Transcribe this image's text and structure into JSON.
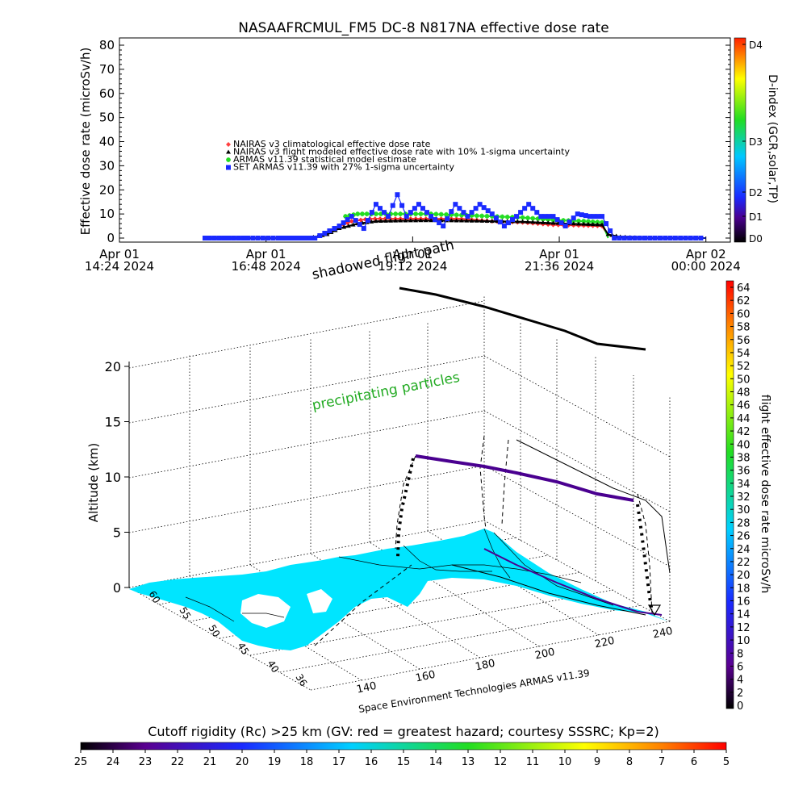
{
  "chart_data": [
    {
      "type": "line",
      "title": "NASAAFRCMUL_FM5 DC-8   N817NA effective dose rate",
      "ylabel": "Effective dose rate (microSv/h)",
      "ylim": [
        0,
        80
      ],
      "yticks": [
        "0",
        "10",
        "20",
        "30",
        "40",
        "50",
        "60",
        "70",
        "80"
      ],
      "x_hours_range": [
        14.4,
        24.4
      ],
      "xticks": [
        {
          "line1": "Apr 01",
          "line2": "14:24 2024",
          "hour": 14.4
        },
        {
          "line1": "Apr 01",
          "line2": "16:48 2024",
          "hour": 16.8
        },
        {
          "line1": "Apr 01",
          "line2": "19:12 2024",
          "hour": 19.2
        },
        {
          "line1": "Apr 01",
          "line2": "21:36 2024",
          "hour": 21.6
        },
        {
          "line1": "Apr 02",
          "line2": "00:00 2024",
          "hour": 24.0
        }
      ],
      "legend": [
        {
          "label": "NAIRAS v3 climatological effective dose rate",
          "color": "#ff4040",
          "marker": "diamond"
        },
        {
          "label": "NAIRAS v3 flight modeled effective dose rate with 10% 1-sigma uncertainty",
          "color": "#000000",
          "marker": "triangle"
        },
        {
          "label": "ARMAS v11.39 statistical model estimate",
          "color": "#22dd22",
          "marker": "asterisk"
        },
        {
          "label": "SET ARMAS v11.39 with 27% 1-sigma uncertainty",
          "color": "#1a2aff",
          "marker": "square"
        }
      ],
      "series": [
        {
          "name": "NAIRAS v3 climatological effective dose rate",
          "color": "#ff3030",
          "x": [
            17.8,
            18.0,
            18.2,
            18.5,
            19.0,
            19.5,
            20.0,
            20.5,
            21.0,
            21.5,
            22.0,
            22.3,
            22.4
          ],
          "y": [
            2,
            5,
            7,
            8,
            8,
            8,
            8,
            7,
            6.5,
            5.5,
            5.2,
            5,
            1
          ]
        },
        {
          "name": "NAIRAS v3 flight modeled effective dose rate with 10% 1-sigma uncertainty",
          "color": "#000000",
          "x": [
            15.8,
            16.5,
            17.0,
            17.5,
            17.8,
            18.0,
            18.3,
            18.6,
            19.0,
            19.5,
            20.0,
            20.5,
            21.0,
            21.5,
            22.0,
            22.3,
            22.4,
            22.6,
            23.0,
            23.5,
            24.0
          ],
          "y": [
            0,
            0,
            0,
            0,
            1.5,
            4,
            6,
            7,
            7.2,
            7.3,
            7.2,
            7,
            6.8,
            6.2,
            5.8,
            5.5,
            1.5,
            0.5,
            0,
            0,
            0
          ]
        },
        {
          "name": "ARMAS v11.39 statistical model estimate",
          "color": "#22dd22",
          "x": [
            18.1,
            18.3,
            18.6,
            19.0,
            19.5,
            20.0,
            20.5,
            21.0,
            21.5,
            22.0,
            22.3,
            22.4
          ],
          "y": [
            9,
            10,
            10,
            10,
            10,
            9.5,
            9,
            8.5,
            7.5,
            7,
            6.5,
            0
          ]
        },
        {
          "name": "SET ARMAS v11.39 with 27% 1-sigma uncertainty",
          "color": "#1a2aff",
          "x": [
            15.8,
            16.5,
            17.0,
            17.6,
            18.0,
            18.2,
            18.4,
            18.6,
            18.8,
            18.95,
            19.1,
            19.3,
            19.5,
            19.7,
            19.9,
            20.1,
            20.3,
            20.5,
            20.7,
            20.9,
            21.1,
            21.3,
            21.5,
            21.7,
            21.9,
            22.1,
            22.3,
            22.5,
            23.0,
            23.5,
            24.0
          ],
          "y": [
            0,
            0,
            0,
            0,
            5,
            9,
            4,
            14,
            9,
            18,
            9,
            14,
            9,
            5,
            14,
            9,
            14,
            10,
            5,
            9,
            14,
            9,
            9,
            5,
            10,
            9,
            9,
            0,
            0,
            0,
            0
          ]
        }
      ],
      "colorbar": {
        "label": "D-index (GCR,solar,TP)",
        "ticks": [
          "D4",
          "D3",
          "D2",
          "D1",
          "D0"
        ]
      }
    },
    {
      "type": "scatter",
      "title": "",
      "zlabel": "Altitude (km)",
      "zticks": [
        "0",
        "5",
        "10",
        "15",
        "20"
      ],
      "x_ticks": [
        "140",
        "160",
        "180",
        "200",
        "220",
        "240"
      ],
      "y_ticks": [
        "36",
        "40",
        "45",
        "50",
        "55",
        "60"
      ],
      "annotations": [
        "shadowed flight path",
        "precipitating particles"
      ],
      "credit": "Space Environment Technologies ARMAS v11.39",
      "colorbar_right": {
        "label": "flight effective dose rate microSv/h",
        "ticks": [
          "64",
          "62",
          "60",
          "58",
          "56",
          "54",
          "52",
          "50",
          "48",
          "46",
          "44",
          "42",
          "40",
          "38",
          "36",
          "34",
          "32",
          "30",
          "28",
          "26",
          "24",
          "22",
          "20",
          "18",
          "16",
          "14",
          "12",
          "10",
          "8",
          "6",
          "4",
          "2",
          "0"
        ]
      },
      "colorbar_bottom": {
        "label": "Cutoff rigidity (Rc) >25 km (GV: red = greatest hazard; courtesy SSSRC; Kp=2)",
        "ticks": [
          "25",
          "24",
          "23",
          "22",
          "21",
          "20",
          "19",
          "18",
          "17",
          "16",
          "15",
          "14",
          "13",
          "12",
          "11",
          "10",
          "9",
          "8",
          "7",
          "6",
          "5"
        ]
      }
    }
  ]
}
